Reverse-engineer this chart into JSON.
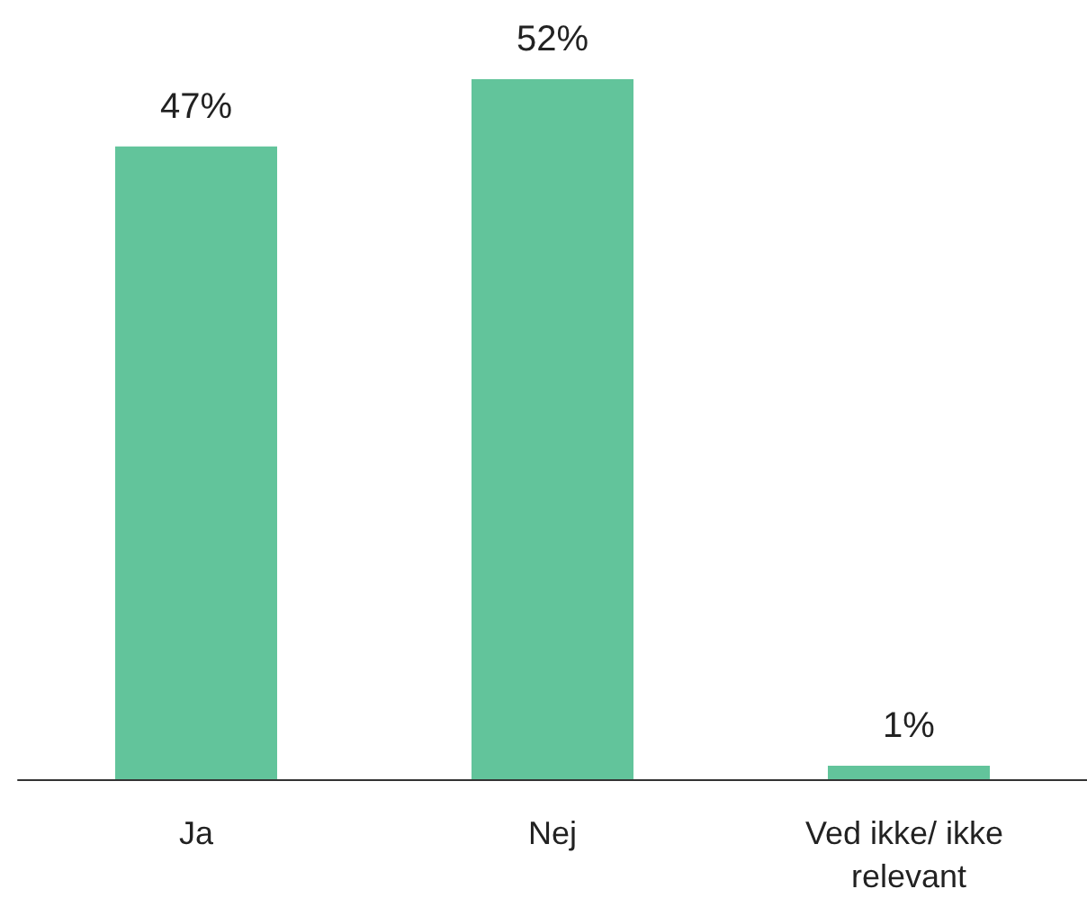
{
  "chart_data": {
    "type": "bar",
    "categories": [
      "Ja",
      "Nej",
      "Ved ikke/ ikke relevant"
    ],
    "values": [
      47,
      52,
      1
    ],
    "value_labels": [
      "47%",
      "52%",
      "1%"
    ],
    "color": "#62c49b"
  }
}
